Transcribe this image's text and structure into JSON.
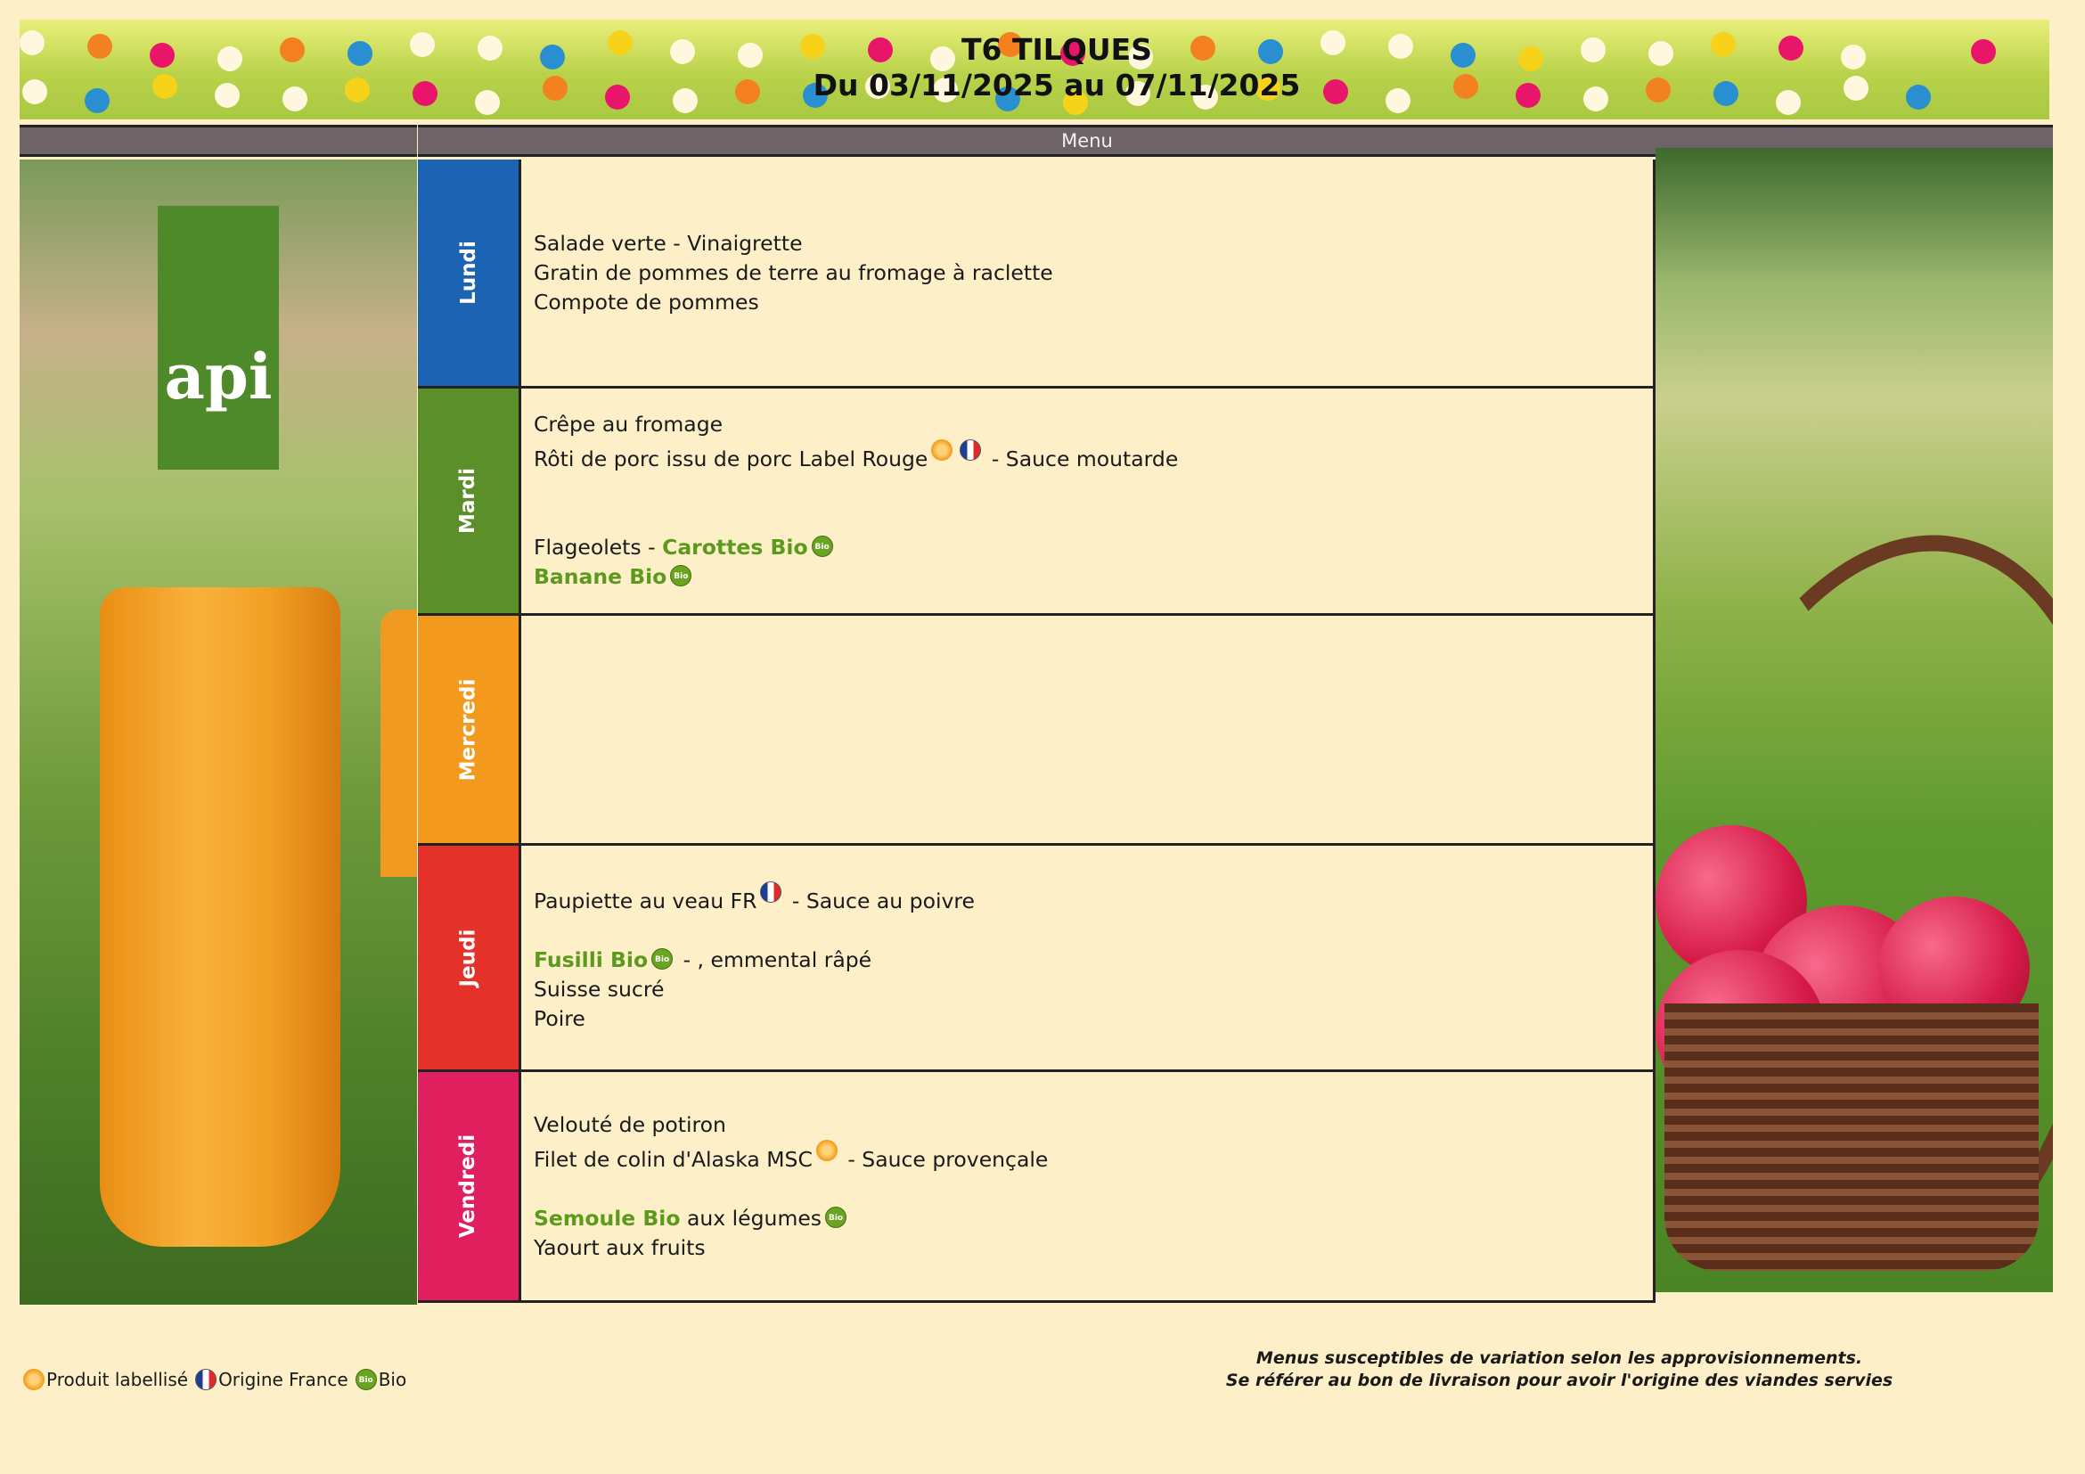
{
  "header": {
    "title": "T6 TILQUES",
    "period": "Du 03/11/2025 au 07/11/2025",
    "column_label": "Menu"
  },
  "logo": {
    "text": "api"
  },
  "days": [
    {
      "name": "Lundi",
      "color": "#1c63b4",
      "lines": [
        [
          {
            "text": "Salade verte - Vinaigrette"
          }
        ],
        [
          {
            "text": "Gratin de pommes de terre au fromage à raclette"
          }
        ],
        [
          {
            "text": "Compote de pommes"
          }
        ]
      ]
    },
    {
      "name": "Mardi",
      "color": "#5a8f2a",
      "lines": [
        [
          {
            "text": "Crêpe au fromage"
          }
        ],
        [
          {
            "text": "Rôti de porc issu de porc Label Rouge",
            "icons": [
              "label-icon",
              "origine-france-icon"
            ]
          },
          {
            "text": " - Sauce moutarde"
          }
        ],
        [],
        [],
        [
          {
            "text": "Flageolets - "
          },
          {
            "text": "Carottes Bio",
            "bio": true,
            "icons": [
              "bio-icon"
            ]
          }
        ],
        [
          {
            "text": "Banane Bio",
            "bio": true,
            "icons": [
              "bio-icon"
            ]
          }
        ]
      ]
    },
    {
      "name": "Mercredi",
      "color": "#f39a1e",
      "lines": []
    },
    {
      "name": "Jeudi",
      "color": "#e4322b",
      "lines": [
        [
          {
            "text": "Paupiette au veau FR",
            "icons": [
              "origine-france-icon"
            ]
          },
          {
            "text": " - Sauce au poivre"
          }
        ],
        [],
        [
          {
            "text": "Fusilli Bio",
            "bio": true,
            "icons": [
              "bio-icon"
            ]
          },
          {
            "text": " - , emmental râpé"
          }
        ],
        [
          {
            "text": "Suisse sucré"
          }
        ],
        [
          {
            "text": "Poire"
          }
        ]
      ]
    },
    {
      "name": "Vendredi",
      "color": "#e0205e",
      "lines": [
        [
          {
            "text": "Velouté de potiron"
          }
        ],
        [
          {
            "text": "Filet de colin d'Alaska MSC",
            "icons": [
              "label-icon"
            ]
          },
          {
            "text": " - Sauce provençale"
          }
        ],
        [],
        [
          {
            "text": "Semoule Bio",
            "bio": true
          },
          {
            "text": " aux légumes",
            "icons": [
              "bio-icon"
            ]
          }
        ],
        [
          {
            "text": "Yaourt aux fruits"
          }
        ]
      ]
    }
  ],
  "legend": {
    "label": "Produit labellisé",
    "france": "Origine France",
    "bio": "Bio",
    "bio_badge": "Bio"
  },
  "disclaimer": {
    "line1": "Menus susceptibles de variation selon les approvisionnements.",
    "line2": "Se référer au bon de livraison pour avoir l'origine des viandes servies"
  },
  "colors": {
    "bio_green": "#5c9a1e",
    "header_bar": "#6e6468"
  }
}
